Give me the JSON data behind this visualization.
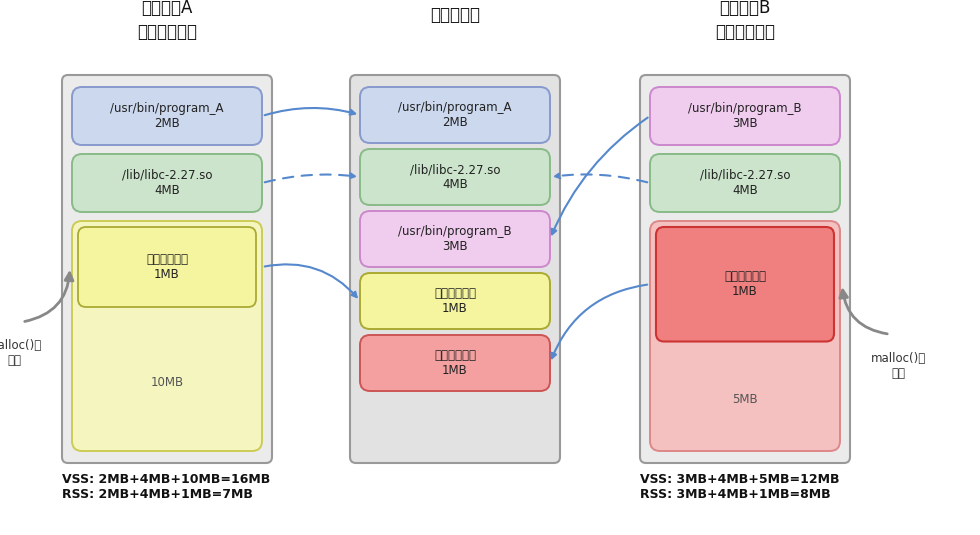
{
  "title_A": "プロセスA\nの仮想メモリ",
  "title_phys": "物理メモリ",
  "title_B": "プロセスB\nの仮想メモリ",
  "vss_rss_A": "VSS: 2MB+4MB+10MB=16MB\nRSS: 2MB+4MB+1MB=7MB",
  "vss_rss_B": "VSS: 3MB+4MB+5MB=12MB\nRSS: 3MB+4MB+1MB=8MB",
  "malloc_A": "malloc()で\n確保",
  "malloc_B": "malloc()で\n確保",
  "bg_color": "#ffffff",
  "proc_A_blocks": [
    {
      "label": "/usr/bin/program_A\n2MB",
      "color": "#ccd8ee",
      "border": "#8899cc"
    },
    {
      "label": "/lib/libc-2.27.so\n4MB",
      "color": "#cce4cc",
      "border": "#88bb88"
    },
    {
      "label_outer": "",
      "label_inner": "書き込み済み\n1MB",
      "label_bottom": "10MB",
      "color_outer": "#f5f5c0",
      "color_inner": "#f5f5a0",
      "border_outer": "#cccc55",
      "border_inner": "#aaaa33",
      "color_bottom": "#f8f8e0",
      "border_bottom": "#cccc99",
      "split": true
    }
  ],
  "phys_blocks": [
    {
      "label": "/usr/bin/program_A\n2MB",
      "color": "#ccd8ee",
      "border": "#8899cc"
    },
    {
      "label": "/lib/libc-2.27.so\n4MB",
      "color": "#cce4cc",
      "border": "#88bb88"
    },
    {
      "label": "/usr/bin/program_B\n3MB",
      "color": "#f0ccee",
      "border": "#cc88cc"
    },
    {
      "label": "書き込み済み\n1MB",
      "color": "#f5f5a0",
      "border": "#aaaa33"
    },
    {
      "label": "書き込み済み\n1MB",
      "color": "#f5a0a0",
      "border": "#cc5555"
    }
  ],
  "proc_B_blocks": [
    {
      "label": "/usr/bin/program_B\n3MB",
      "color": "#f0ccee",
      "border": "#cc88cc"
    },
    {
      "label": "/lib/libc-2.27.so\n4MB",
      "color": "#cce4cc",
      "border": "#88bb88"
    },
    {
      "label_inner": "書き込み済み\n1MB",
      "label_outer": "5MB",
      "color_inner": "#f08080",
      "color_outer": "#f5c0c0",
      "border_inner": "#cc3333",
      "border_outer": "#dd8888",
      "split": true
    }
  ]
}
